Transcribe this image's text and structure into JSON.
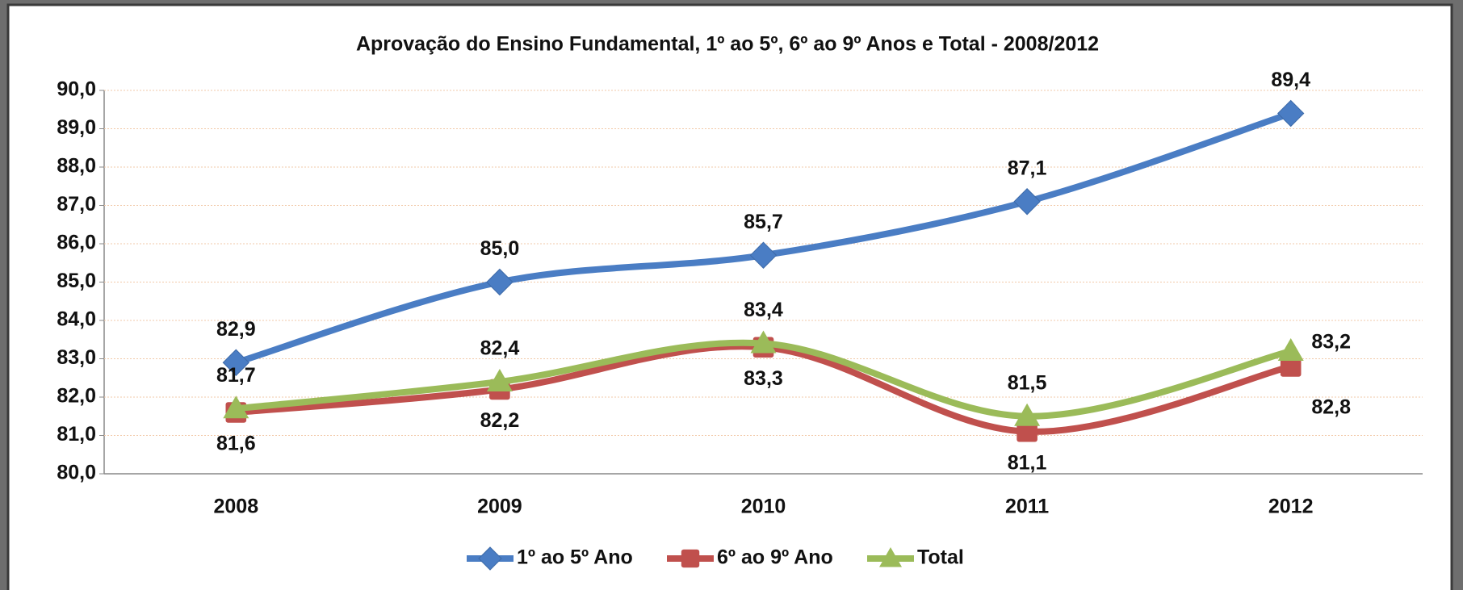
{
  "chart_data": {
    "type": "line",
    "title": "Aprovação do Ensino Fundamental, 1º ao 5º, 6º ao 9º Anos e Total  - 2008/2012",
    "categories": [
      "2008",
      "2009",
      "2010",
      "2011",
      "2012"
    ],
    "series": [
      {
        "name": "1º ao 5º Ano",
        "color": "#4a7dc4",
        "marker": "diamond",
        "values": [
          82.9,
          85.0,
          85.7,
          87.1,
          89.4
        ],
        "value_labels": [
          "82,9",
          "85,0",
          "85,7",
          "87,1",
          "89,4"
        ]
      },
      {
        "name": "6º ao 9º Ano",
        "color": "#c0504d",
        "marker": "square",
        "values": [
          81.6,
          82.2,
          83.3,
          81.1,
          82.8
        ],
        "value_labels": [
          "81,6",
          "82,2",
          "83,3",
          "81,1",
          "82,8"
        ]
      },
      {
        "name": "Total",
        "color": "#9bbb59",
        "marker": "triangle",
        "values": [
          81.7,
          82.4,
          83.4,
          81.5,
          83.2
        ],
        "value_labels": [
          "81,7",
          "82,4",
          "83,4",
          "81,5",
          "83,2"
        ]
      }
    ],
    "ylim": [
      80,
      90
    ],
    "yticks": [
      {
        "value": 80,
        "label": "80,0"
      },
      {
        "value": 81,
        "label": "81,0"
      },
      {
        "value": 82,
        "label": "82,0"
      },
      {
        "value": 83,
        "label": "83,0"
      },
      {
        "value": 84,
        "label": "84,0"
      },
      {
        "value": 85,
        "label": "85,0"
      },
      {
        "value": 86,
        "label": "86,0"
      },
      {
        "value": 87,
        "label": "87,0"
      },
      {
        "value": 88,
        "label": "88,0"
      },
      {
        "value": 89,
        "label": "89,0"
      },
      {
        "value": 90,
        "label": "90,0"
      }
    ],
    "grid": true,
    "legend": "bottom"
  }
}
